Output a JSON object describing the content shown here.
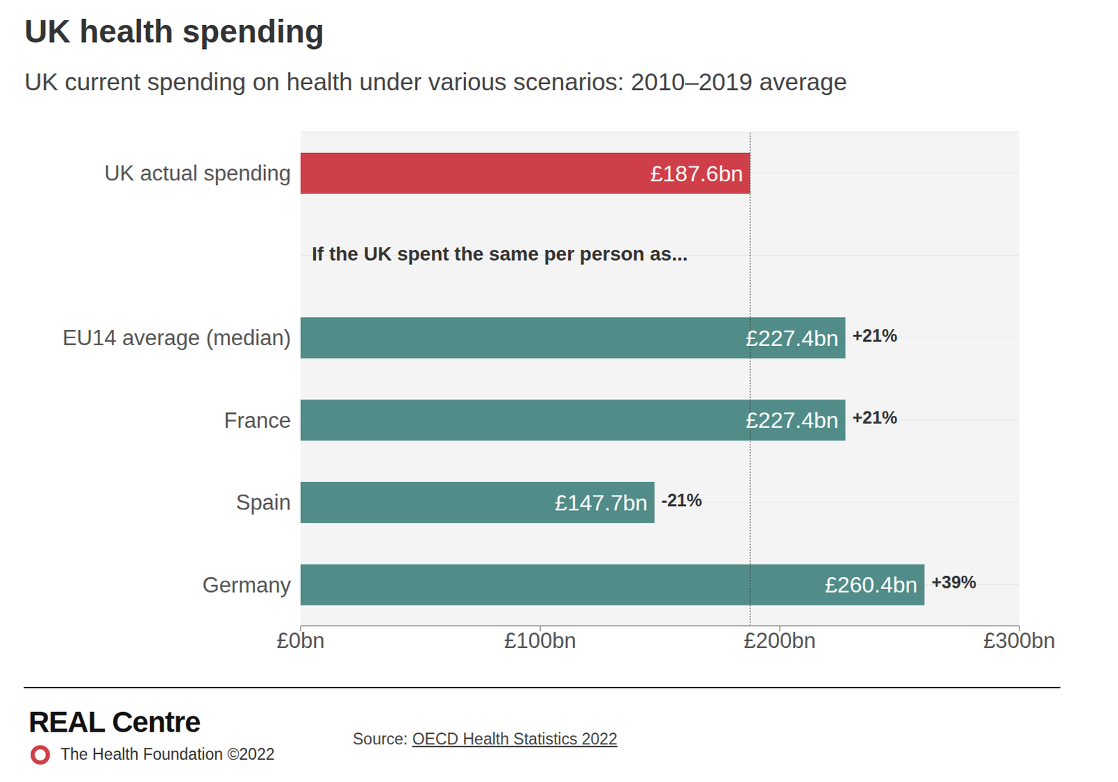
{
  "chart_data": {
    "type": "bar",
    "orientation": "horizontal",
    "title": "UK health spending",
    "subtitle": "UK current spending on health under various scenarios: 2010–2019 average",
    "annotation": "If the UK spent the same per person as...",
    "categories": [
      "UK actual spending",
      null,
      "EU14 average (median)",
      "France",
      "Spain",
      "Germany"
    ],
    "values": [
      187.6,
      null,
      227.4,
      227.4,
      147.7,
      260.4
    ],
    "value_labels": [
      "£187.6bn",
      null,
      "£227.4bn",
      "£227.4bn",
      "£147.7bn",
      "£260.4bn"
    ],
    "change_labels": [
      null,
      null,
      "+21%",
      "+21%",
      "-21%",
      "+39%"
    ],
    "colors": [
      "#cf3f4a",
      null,
      "#528c88",
      "#528c88",
      "#528c88",
      "#528c88"
    ],
    "data_labels": true,
    "xlim": [
      0,
      300
    ],
    "xticks": [
      {
        "value": 0,
        "label": "£0bn"
      },
      {
        "value": 100,
        "label": "£100bn"
      },
      {
        "value": 200,
        "label": "£200bn"
      },
      {
        "value": 300,
        "label": "£300bn"
      }
    ],
    "grid": true,
    "footer": {
      "brand": "REAL Centre",
      "organisation": "The Health Foundation ©2022",
      "source_label": "Source:",
      "source": "OECD Health Statistics 2022"
    }
  }
}
